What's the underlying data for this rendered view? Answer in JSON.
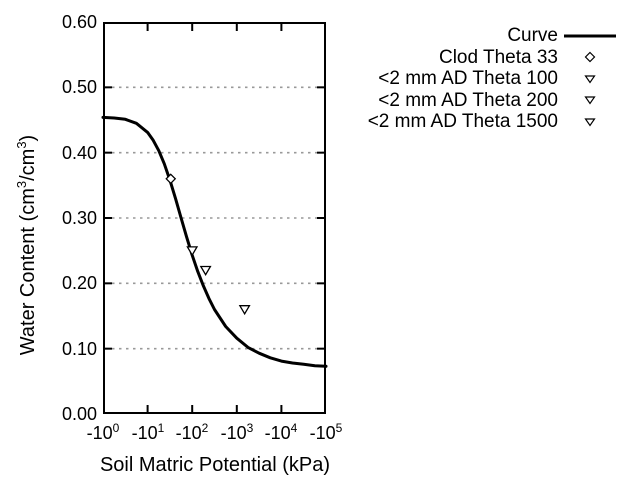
{
  "chart_data": {
    "type": "line",
    "title": "",
    "xlabel": "Soil Matric Potential (kPa)",
    "ylabel": "Water Content (cm³/cm³)",
    "ylabel_parts": {
      "p1": "Water Content (cm",
      "sup1": "3",
      "p2": "/cm",
      "sup2": "3",
      "p3": ")"
    },
    "x_axis": {
      "scale": "negative log10 (kPa magnitude)",
      "decades_range": [
        0,
        5
      ],
      "tick_base": "-10",
      "tick_exponents": [
        "0",
        "1",
        "2",
        "3",
        "4",
        "5"
      ],
      "ticks_d": [
        0,
        1,
        2,
        3,
        4,
        5
      ]
    },
    "y_axis": {
      "ylim": [
        0,
        0.6
      ],
      "ticks_v": [
        0,
        0.1,
        0.2,
        0.3,
        0.4,
        0.5,
        0.6
      ],
      "tick_labels_top_to_bottom": [
        "0.60",
        "0.50",
        "0.40",
        "0.30",
        "0.20",
        "0.10",
        "0.00"
      ]
    },
    "grid": {
      "horizontal_dotted": true,
      "vertical": false
    },
    "legend": {
      "position": "outside-top-right",
      "markers": [
        "line-sample",
        "diamond-open",
        "triangle-down-open",
        "triangle-down-open",
        "triangle-down-open"
      ]
    },
    "series": [
      {
        "name": "Curve",
        "type": "line",
        "points_d_theta": [
          [
            0.0,
            0.454
          ],
          [
            0.25,
            0.453
          ],
          [
            0.5,
            0.451
          ],
          [
            0.75,
            0.445
          ],
          [
            1.0,
            0.431
          ],
          [
            1.125,
            0.419
          ],
          [
            1.25,
            0.403
          ],
          [
            1.375,
            0.383
          ],
          [
            1.5,
            0.358
          ],
          [
            1.625,
            0.33
          ],
          [
            1.75,
            0.3
          ],
          [
            1.875,
            0.271
          ],
          [
            2.0,
            0.243
          ],
          [
            2.125,
            0.218
          ],
          [
            2.25,
            0.196
          ],
          [
            2.375,
            0.177
          ],
          [
            2.5,
            0.16
          ],
          [
            2.75,
            0.134
          ],
          [
            3.0,
            0.116
          ],
          [
            3.25,
            0.102
          ],
          [
            3.5,
            0.093
          ],
          [
            3.75,
            0.086
          ],
          [
            4.0,
            0.081
          ],
          [
            4.25,
            0.078
          ],
          [
            4.5,
            0.076
          ],
          [
            4.75,
            0.074
          ],
          [
            5.0,
            0.073
          ]
        ]
      },
      {
        "name": "Clod Theta 33",
        "type": "scatter",
        "marker": "diamond-open",
        "points": [
          {
            "kpa": -33,
            "d": 1.519,
            "theta": 0.36
          }
        ]
      },
      {
        "name": "<2 mm AD Theta 100",
        "type": "scatter",
        "marker": "triangle-down-open",
        "points": [
          {
            "kpa": -100,
            "d": 2.0,
            "theta": 0.25
          }
        ]
      },
      {
        "name": "<2 mm AD Theta 200",
        "type": "scatter",
        "marker": "triangle-down-open",
        "points": [
          {
            "kpa": -200,
            "d": 2.301,
            "theta": 0.22
          }
        ]
      },
      {
        "name": "<2 mm AD Theta 1500",
        "type": "scatter",
        "marker": "triangle-down-open",
        "points": [
          {
            "kpa": -1500,
            "d": 3.176,
            "theta": 0.16
          }
        ]
      }
    ],
    "colors": {
      "foreground": "#000000",
      "grid": "#999999",
      "background": "#ffffff"
    }
  }
}
